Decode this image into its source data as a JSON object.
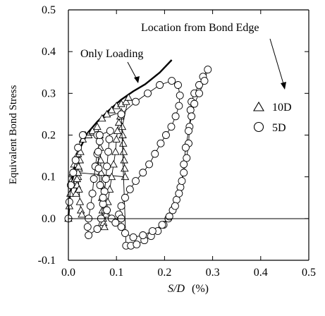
{
  "chart_data": {
    "type": "scatter",
    "xlabel_var": "S/D",
    "xlabel_unit": "(%)",
    "ylabel": "Equivalent Bond Stress",
    "xlim": [
      0.0,
      0.5
    ],
    "ylim": [
      -0.1,
      0.5
    ],
    "x_ticks": [
      "0.0",
      "0.1",
      "0.2",
      "0.3",
      "0.4",
      "0.5"
    ],
    "y_ticks": [
      "-0.1",
      "0.0",
      "0.1",
      "0.2",
      "0.3",
      "0.4",
      "0.5"
    ],
    "x_tick_values": [
      0.0,
      0.1,
      0.2,
      0.3,
      0.4,
      0.5
    ],
    "y_tick_values": [
      -0.1,
      0.0,
      0.1,
      0.2,
      0.3,
      0.4,
      0.5
    ],
    "grid": false,
    "annotations": {
      "only_loading": "Only Loading",
      "location": "Location from Bond Edge"
    },
    "legend": {
      "placement": "right",
      "entries": [
        {
          "marker": "triangle",
          "label": "10D"
        },
        {
          "marker": "circle",
          "label": "5D"
        }
      ]
    },
    "series": [
      {
        "marker": "line",
        "style": "thick",
        "points": [
          [
            0.0,
            0.0
          ],
          [
            0.003,
            0.05
          ],
          [
            0.008,
            0.09
          ],
          [
            0.015,
            0.13
          ],
          [
            0.025,
            0.17
          ],
          [
            0.04,
            0.205
          ],
          [
            0.06,
            0.232
          ],
          [
            0.085,
            0.26
          ],
          [
            0.11,
            0.285
          ],
          [
            0.135,
            0.305
          ],
          [
            0.16,
            0.322
          ],
          [
            0.19,
            0.35
          ],
          [
            0.215,
            0.38
          ]
        ]
      },
      {
        "name": "10D",
        "marker": "triangle",
        "points": [
          [
            0.0,
            0.0
          ],
          [
            0.002,
            0.03
          ],
          [
            0.004,
            0.06
          ],
          [
            0.006,
            0.09
          ],
          [
            0.009,
            0.11
          ],
          [
            0.012,
            0.13
          ],
          [
            0.016,
            0.145
          ],
          [
            0.02,
            0.155
          ],
          [
            0.024,
            0.14
          ],
          [
            0.022,
            0.12
          ],
          [
            0.02,
            0.1
          ],
          [
            0.018,
            0.08
          ],
          [
            0.016,
            0.06
          ],
          [
            0.018,
            0.095
          ],
          [
            0.021,
            0.125
          ],
          [
            0.025,
            0.16
          ],
          [
            0.03,
            0.19
          ],
          [
            0.035,
            0.2
          ],
          [
            0.042,
            0.2
          ],
          [
            0.05,
            0.21
          ],
          [
            0.06,
            0.22
          ],
          [
            0.065,
            0.2
          ],
          [
            0.066,
            0.17
          ],
          [
            0.067,
            0.14
          ],
          [
            0.068,
            0.11
          ],
          [
            0.069,
            0.08
          ],
          [
            0.07,
            0.05
          ],
          [
            0.071,
            0.02
          ],
          [
            0.072,
            0.0
          ],
          [
            0.073,
            -0.01
          ],
          [
            0.075,
            -0.02
          ],
          [
            0.078,
            0.01
          ],
          [
            0.082,
            0.04
          ],
          [
            0.086,
            0.07
          ],
          [
            0.09,
            0.1
          ],
          [
            0.094,
            0.13
          ],
          [
            0.098,
            0.16
          ],
          [
            0.1,
            0.19
          ],
          [
            0.102,
            0.21
          ],
          [
            0.105,
            0.23
          ],
          [
            0.108,
            0.245
          ],
          [
            0.11,
            0.255
          ],
          [
            0.07,
            0.24
          ],
          [
            0.08,
            0.25
          ],
          [
            0.09,
            0.26
          ],
          [
            0.1,
            0.27
          ],
          [
            0.11,
            0.275
          ],
          [
            0.12,
            0.28
          ],
          [
            0.125,
            0.29
          ],
          [
            0.112,
            0.22
          ],
          [
            0.113,
            0.2
          ],
          [
            0.114,
            0.18
          ],
          [
            0.115,
            0.16
          ],
          [
            0.116,
            0.14
          ],
          [
            0.117,
            0.12
          ],
          [
            0.118,
            0.1
          ],
          [
            0.02,
            0.11
          ],
          [
            0.022,
            0.07
          ],
          [
            0.024,
            0.04
          ],
          [
            0.026,
            0.02
          ],
          [
            0.028,
            0.01
          ]
        ]
      },
      {
        "name": "5D",
        "marker": "circle",
        "points": [
          [
            0.0,
            0.0
          ],
          [
            0.002,
            0.04
          ],
          [
            0.005,
            0.08
          ],
          [
            0.01,
            0.11
          ],
          [
            0.015,
            0.14
          ],
          [
            0.02,
            0.17
          ],
          [
            0.03,
            0.2
          ],
          [
            0.06,
            0.2
          ],
          [
            0.065,
            0.185
          ],
          [
            0.06,
            0.155
          ],
          [
            0.056,
            0.125
          ],
          [
            0.053,
            0.095
          ],
          [
            0.05,
            0.06
          ],
          [
            0.046,
            0.03
          ],
          [
            0.042,
            0.0
          ],
          [
            0.04,
            -0.02
          ],
          [
            0.042,
            -0.04
          ],
          [
            0.06,
            -0.025
          ],
          [
            0.068,
            0.0
          ],
          [
            0.072,
            0.035
          ],
          [
            0.075,
            0.065
          ],
          [
            0.078,
            0.095
          ],
          [
            0.08,
            0.125
          ],
          [
            0.083,
            0.16
          ],
          [
            0.085,
            0.19
          ],
          [
            0.087,
            0.21
          ],
          [
            0.065,
            0.2
          ],
          [
            0.062,
            0.16
          ],
          [
            0.063,
            0.12
          ],
          [
            0.066,
            0.08
          ],
          [
            0.072,
            0.05
          ],
          [
            0.08,
            0.02
          ],
          [
            0.09,
            0.0
          ],
          [
            0.098,
            -0.01
          ],
          [
            0.105,
            0.01
          ],
          [
            0.11,
            0.03
          ],
          [
            0.118,
            0.05
          ],
          [
            0.128,
            0.07
          ],
          [
            0.14,
            0.09
          ],
          [
            0.155,
            0.11
          ],
          [
            0.168,
            0.13
          ],
          [
            0.18,
            0.155
          ],
          [
            0.192,
            0.18
          ],
          [
            0.203,
            0.2
          ],
          [
            0.214,
            0.22
          ],
          [
            0.223,
            0.245
          ],
          [
            0.23,
            0.27
          ],
          [
            0.232,
            0.295
          ],
          [
            0.228,
            0.32
          ],
          [
            0.215,
            0.33
          ],
          [
            0.19,
            0.32
          ],
          [
            0.165,
            0.3
          ],
          [
            0.14,
            0.28
          ],
          [
            0.11,
            0.25
          ],
          [
            0.12,
            -0.065
          ],
          [
            0.13,
            -0.065
          ],
          [
            0.142,
            -0.062
          ],
          [
            0.158,
            -0.052
          ],
          [
            0.172,
            -0.042
          ],
          [
            0.186,
            -0.03
          ],
          [
            0.198,
            -0.015
          ],
          [
            0.208,
            0.0
          ],
          [
            0.217,
            0.02
          ],
          [
            0.225,
            0.045
          ],
          [
            0.233,
            0.075
          ],
          [
            0.24,
            0.11
          ],
          [
            0.246,
            0.145
          ],
          [
            0.25,
            0.18
          ],
          [
            0.252,
            0.22
          ],
          [
            0.254,
            0.26
          ],
          [
            0.256,
            0.28
          ],
          [
            0.262,
            0.3
          ],
          [
            0.272,
            0.32
          ],
          [
            0.28,
            0.34
          ],
          [
            0.29,
            0.357
          ],
          [
            0.283,
            0.33
          ],
          [
            0.272,
            0.3
          ],
          [
            0.262,
            0.275
          ],
          [
            0.256,
            0.245
          ],
          [
            0.25,
            0.21
          ],
          [
            0.244,
            0.17
          ],
          [
            0.24,
            0.13
          ],
          [
            0.236,
            0.09
          ],
          [
            0.23,
            0.06
          ],
          [
            0.222,
            0.03
          ],
          [
            0.21,
            0.005
          ],
          [
            0.195,
            -0.015
          ],
          [
            0.175,
            -0.03
          ],
          [
            0.155,
            -0.04
          ],
          [
            0.135,
            -0.045
          ],
          [
            0.118,
            -0.035
          ],
          [
            0.11,
            -0.02
          ],
          [
            0.11,
            0.0
          ]
        ]
      }
    ]
  }
}
